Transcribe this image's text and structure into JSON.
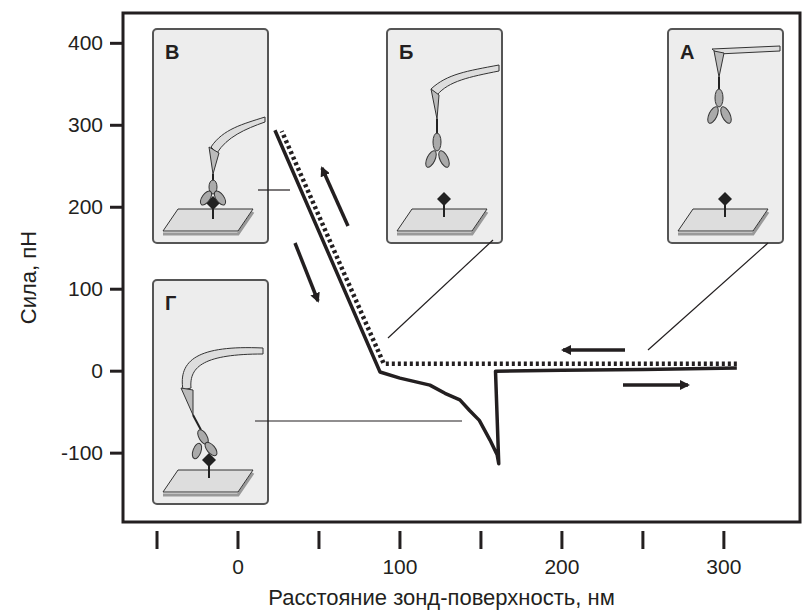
{
  "chart_data": {
    "type": "line",
    "xlabel": "Расстояние зонд-поверхность, нм",
    "ylabel": "Сила, пН",
    "xlim": [
      -71,
      347
    ],
    "ylim": [
      -184,
      437
    ],
    "xticks": [
      0,
      100,
      200,
      300
    ],
    "yticks": [
      -100,
      0,
      100,
      200,
      300,
      400
    ],
    "grid": false,
    "series": [
      {
        "color": "#231f20",
        "line_style": "solid",
        "x": [
          22.8,
          87.7,
          100,
          118.5,
          127.8,
          137,
          143,
          149,
          155.6,
          160,
          161,
          159,
          200,
          250,
          308
        ],
        "values": [
          294,
          -1,
          -8.5,
          -17,
          -27,
          -35,
          -48,
          -60,
          -84,
          -102,
          -113,
          0,
          1,
          2,
          4
        ]
      },
      {
        "color": "#231f20",
        "line_style": "dotted",
        "x": [
          308,
          90,
          27
        ],
        "values": [
          9,
          9,
          293
        ]
      }
    ],
    "annotations": [
      {
        "text": "В"
      },
      {
        "text": "Б"
      },
      {
        "text": "А"
      },
      {
        "text": "Г"
      }
    ]
  }
}
